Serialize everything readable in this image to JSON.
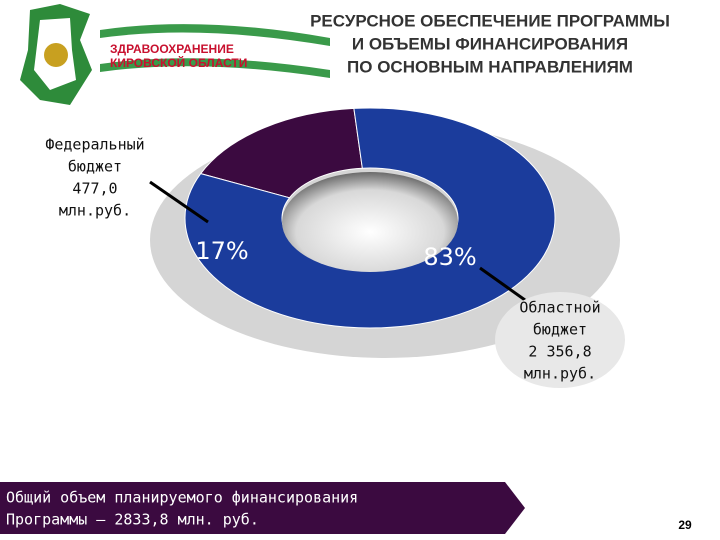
{
  "header": {
    "logo_text": [
      "ЗДРАВООХРАНЕНИЕ",
      "КИРОВСКОЙ ОБЛАСТИ"
    ]
  },
  "chart_data": {
    "type": "donut",
    "title": [
      "РЕСУРСНОЕ ОБЕСПЕЧЕНИЕ ПРОГРАММЫ",
      "И ОБЪЕМЫ ФИНАНСИРОВАНИЯ",
      "ПО ОСНОВНЫМ НАПРАВЛЕНИЯМ"
    ],
    "label_lines": [
      [
        "Федеральный",
        "бюджет",
        "477,0",
        "млн.руб."
      ],
      [
        "Областной",
        "бюджет",
        "2 356,8",
        "млн.руб."
      ]
    ],
    "values": [
      17,
      83
    ],
    "value_labels": [
      "17%",
      "83%"
    ],
    "colors": [
      "#3b0a40",
      "#1b3c9c"
    ]
  },
  "footer": {
    "text": [
      "Общий объем планируемого финансирования",
      "Программы – 2833,8 млн. руб."
    ],
    "page_number": 29
  }
}
